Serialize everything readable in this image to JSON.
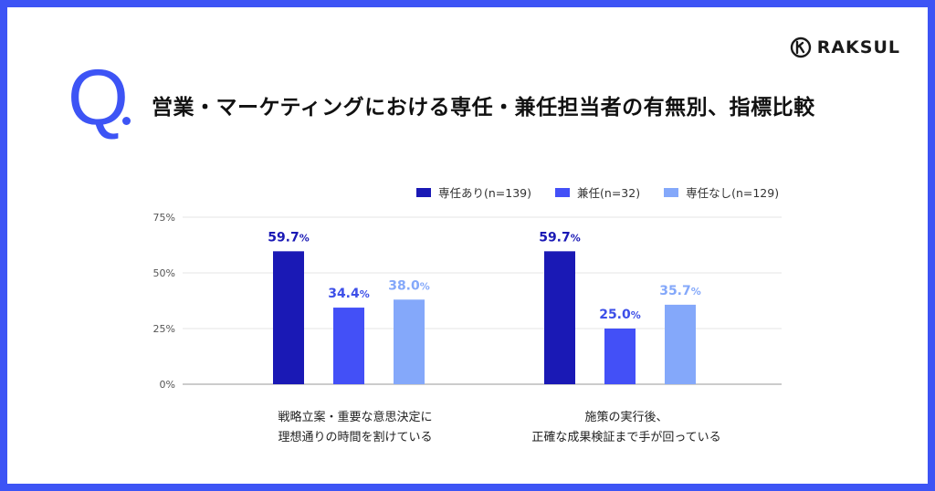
{
  "brand": {
    "name": "RAKSUL",
    "logo_icon": "raksul-logo-icon"
  },
  "question": {
    "mark": "Q",
    "title": "営業・マーケティングにおける専任・兼任担当者の有無別、指標比較"
  },
  "colors": {
    "frame": "#3d54f5",
    "series1": "#1a19b5",
    "series2": "#4350f7",
    "series3": "#84a8fa"
  },
  "chart_data": {
    "type": "bar",
    "categories": [
      [
        "戦略立案・重要な意思決定に",
        "理想通りの時間を割けている"
      ],
      [
        "施策の実行後、",
        "正確な成果検証まで手が回っている"
      ]
    ],
    "series": [
      {
        "name": "専任あり(n=139)",
        "values": [
          59.7,
          59.7
        ],
        "labels": [
          "59.7",
          "59.7"
        ]
      },
      {
        "name": "兼任(n=32)",
        "values": [
          34.4,
          25.0
        ],
        "labels": [
          "34.4",
          "25.0"
        ]
      },
      {
        "name": "専任なし(n=129)",
        "values": [
          38.0,
          35.7
        ],
        "labels": [
          "38.0",
          "35.7"
        ]
      }
    ],
    "value_suffix": "%",
    "yticks": [
      "0%",
      "25%",
      "50%",
      "75%"
    ],
    "ylim": [
      0,
      75
    ],
    "grid": true,
    "legend": "top-right"
  }
}
